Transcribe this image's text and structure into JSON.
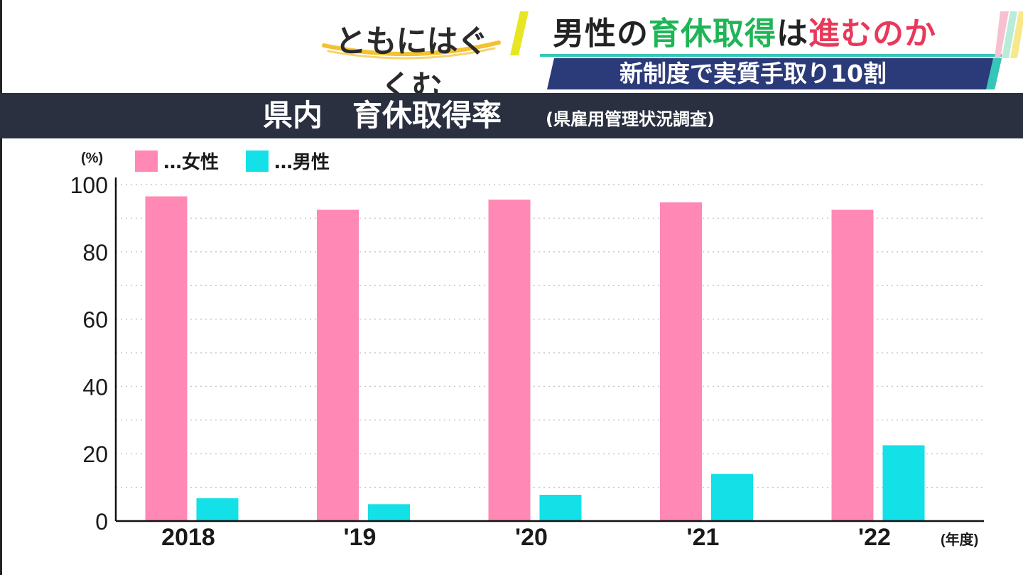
{
  "header": {
    "logo_text": "ともにはぐくむ",
    "headline_parts": [
      {
        "text": "男性の",
        "color": "#222222"
      },
      {
        "text": "育休取得",
        "color": "#1fb556"
      },
      {
        "text": "は",
        "color": "#222222"
      },
      {
        "text": "進むのか",
        "color": "#e8395a"
      }
    ],
    "subtitle": "新制度で実質手取り10割"
  },
  "chart_title": {
    "main": "県内　育休取得率",
    "sub": "(県雇用管理状況調査)"
  },
  "colors": {
    "female": "#ff88b5",
    "male": "#14e0e8",
    "title_bar": "#2b3040",
    "subtitle_band": "#2b3a78"
  },
  "chart_data": {
    "type": "bar",
    "categories": [
      "2018",
      "'19",
      "'20",
      "'21",
      "'22"
    ],
    "series": [
      {
        "name": "…女性",
        "values": [
          96.5,
          92.5,
          95.5,
          94.7,
          92.5
        ]
      },
      {
        "name": "…男性",
        "values": [
          6.8,
          5.0,
          7.8,
          14.0,
          22.5
        ]
      }
    ],
    "ylim": [
      0,
      100
    ],
    "yticks": [
      0,
      20,
      40,
      60,
      80,
      100
    ],
    "ylabel": "(%)",
    "xlabel": "(年度)",
    "grid": true,
    "legend": "top-left"
  }
}
